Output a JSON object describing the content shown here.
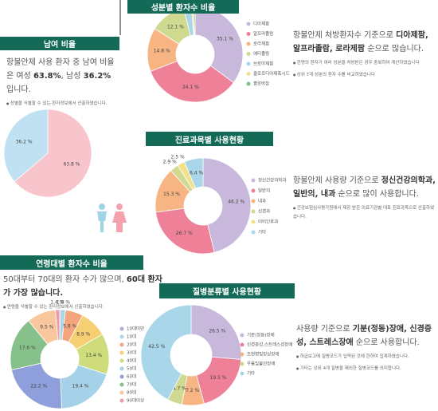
{
  "chart_data": [
    {
      "type": "pie",
      "title": "남여 비율",
      "values": [
        63.8,
        36.2
      ],
      "value_labels": [
        "63.8 %",
        "36.2 %"
      ],
      "colors": [
        "#f9c5cc",
        "#bfe1f2"
      ],
      "description": [
        {
          "text": "항불안제 사용 환자 중 남여 비율은 여성 ",
          "bold": false
        },
        {
          "text": "63.8%",
          "bold": true
        },
        {
          "text": ", 남성 ",
          "bold": false
        },
        {
          "text": "36.2%",
          "bold": true
        },
        {
          "text": " 입니다.",
          "bold": false
        }
      ],
      "notes": [
        "성별을 식별할 수 있는 환자정보에서 산출하였습니다."
      ]
    },
    {
      "type": "donut",
      "title": "성분별 환자수 비율",
      "categories": [
        "디아제팜",
        "알프라졸람",
        "로라제팜",
        "에티졸람",
        "브로마제팜",
        "클로르디아제폭시드",
        "클로바잠"
      ],
      "values": [
        35.1,
        34.1,
        14.8,
        12.1,
        2.7,
        0.7,
        0.5
      ],
      "value_labels": [
        "35.1 %",
        "34.1 %",
        "14.8 %",
        "12.1 %",
        "2.7 %",
        "0.7 %",
        "0.5 %"
      ],
      "colors": [
        "#c8b9dc",
        "#ee8198",
        "#f7b584",
        "#cfd98f",
        "#a9d6e8",
        "#f3e08a",
        "#7fbf8c"
      ],
      "description": [
        {
          "text": "항불안제 처방환자수 기준으로 ",
          "bold": false
        },
        {
          "text": "디아제팜, 알프라졸람, 로라제팜",
          "bold": true
        },
        {
          "text": " 순으로 많습니다.",
          "bold": false
        }
      ],
      "notes": [
        "한명의 환자가 여러 성분을 처방받은 경우 중복하여 계산하였습니다",
        "상위 7개 성분의 환자 수를 비교하였습니다"
      ]
    },
    {
      "type": "donut",
      "title": "진료과목별 사용현황",
      "categories": [
        "정신건강의학과",
        "일반의",
        "내과",
        "신경과",
        "이비인후과",
        "기타"
      ],
      "values": [
        46.2,
        26.7,
        15.3,
        2.9,
        2.5,
        6.4
      ],
      "value_labels": [
        "46.2 %",
        "26.7 %",
        "15.3 %",
        "2.9 %",
        "2.5 %",
        "6.4 %"
      ],
      "colors": [
        "#c8b9dc",
        "#ee8198",
        "#f7b584",
        "#cfd98f",
        "#f3e08a",
        "#a9d6e8"
      ],
      "description": [
        {
          "text": "항불안제 사용량 기준으로 ",
          "bold": false
        },
        {
          "text": "정신건강의학과, 일반의, 내과",
          "bold": true
        },
        {
          "text": " 순으로 많이 사용합니다.",
          "bold": false
        }
      ],
      "notes": [
        "건강보험심사평가원에서 제공 받은 의료기관별 대표 진료과목으로 산출하였습니다."
      ]
    },
    {
      "type": "donut",
      "title": "연령대별 환자수 비율",
      "categories": [
        "10대미만",
        "10대",
        "20대",
        "30대",
        "40대",
        "50대",
        "60대",
        "70대",
        "80대",
        "90대이상"
      ],
      "values": [
        0.1,
        1.8,
        5.8,
        8.9,
        13.4,
        19.4,
        22.2,
        17.6,
        9.5,
        1.4
      ],
      "value_labels": [
        null,
        "1.8 %",
        "5.8 %",
        "8.9 %",
        "13.4 %",
        "19.4 %",
        "22.2 %",
        "17.6 %",
        "9.5 %",
        "1.4 %"
      ],
      "colors": [
        "#b9a7d6",
        "#a9d6ea",
        "#f4a57c",
        "#f7cf73",
        "#cfdc7c",
        "#a6d2e9",
        "#8f9fdc",
        "#86c08a",
        "#f8c79d",
        "#f09aa8"
      ],
      "description": [
        {
          "text": "50대부터 70대의 환자 수가 많으며, ",
          "bold": false
        },
        {
          "text": "60대 환자가 가장 많습니다.",
          "bold": true
        }
      ],
      "notes": [
        "연령을 식별할 수 있는 환자정보에서 산출하였습니다."
      ]
    },
    {
      "type": "donut",
      "title": "질병분류별 사용현황",
      "categories": [
        "기분(정동)장애",
        "신경증성,스트레스성장애",
        "조현병및망상장애",
        "우울및불안장애",
        "기타"
      ],
      "values": [
        26.5,
        19.5,
        7.2,
        4.7,
        42.5
      ],
      "value_labels": [
        "26.5 %",
        "19.5 %",
        "7.2 %",
        "4.7 %",
        "42.5 %"
      ],
      "colors": [
        "#c8b9dc",
        "#ee8198",
        "#f7b584",
        "#cfd98f",
        "#a9d6e8"
      ],
      "description": [
        {
          "text": "사용량 기준으로 ",
          "bold": false
        },
        {
          "text": "기분(정동)장애, 신경증성, 스트레스장애",
          "bold": true
        },
        {
          "text": " 순으로 사용합니다.",
          "bold": false
        }
      ],
      "notes": [
        "하급보고에 질병코드가 입력된 것에 한하여 집계하였습니다.",
        "기타는 상위 4개 질병을 제외한 질병코드를 의미합니다."
      ]
    }
  ]
}
